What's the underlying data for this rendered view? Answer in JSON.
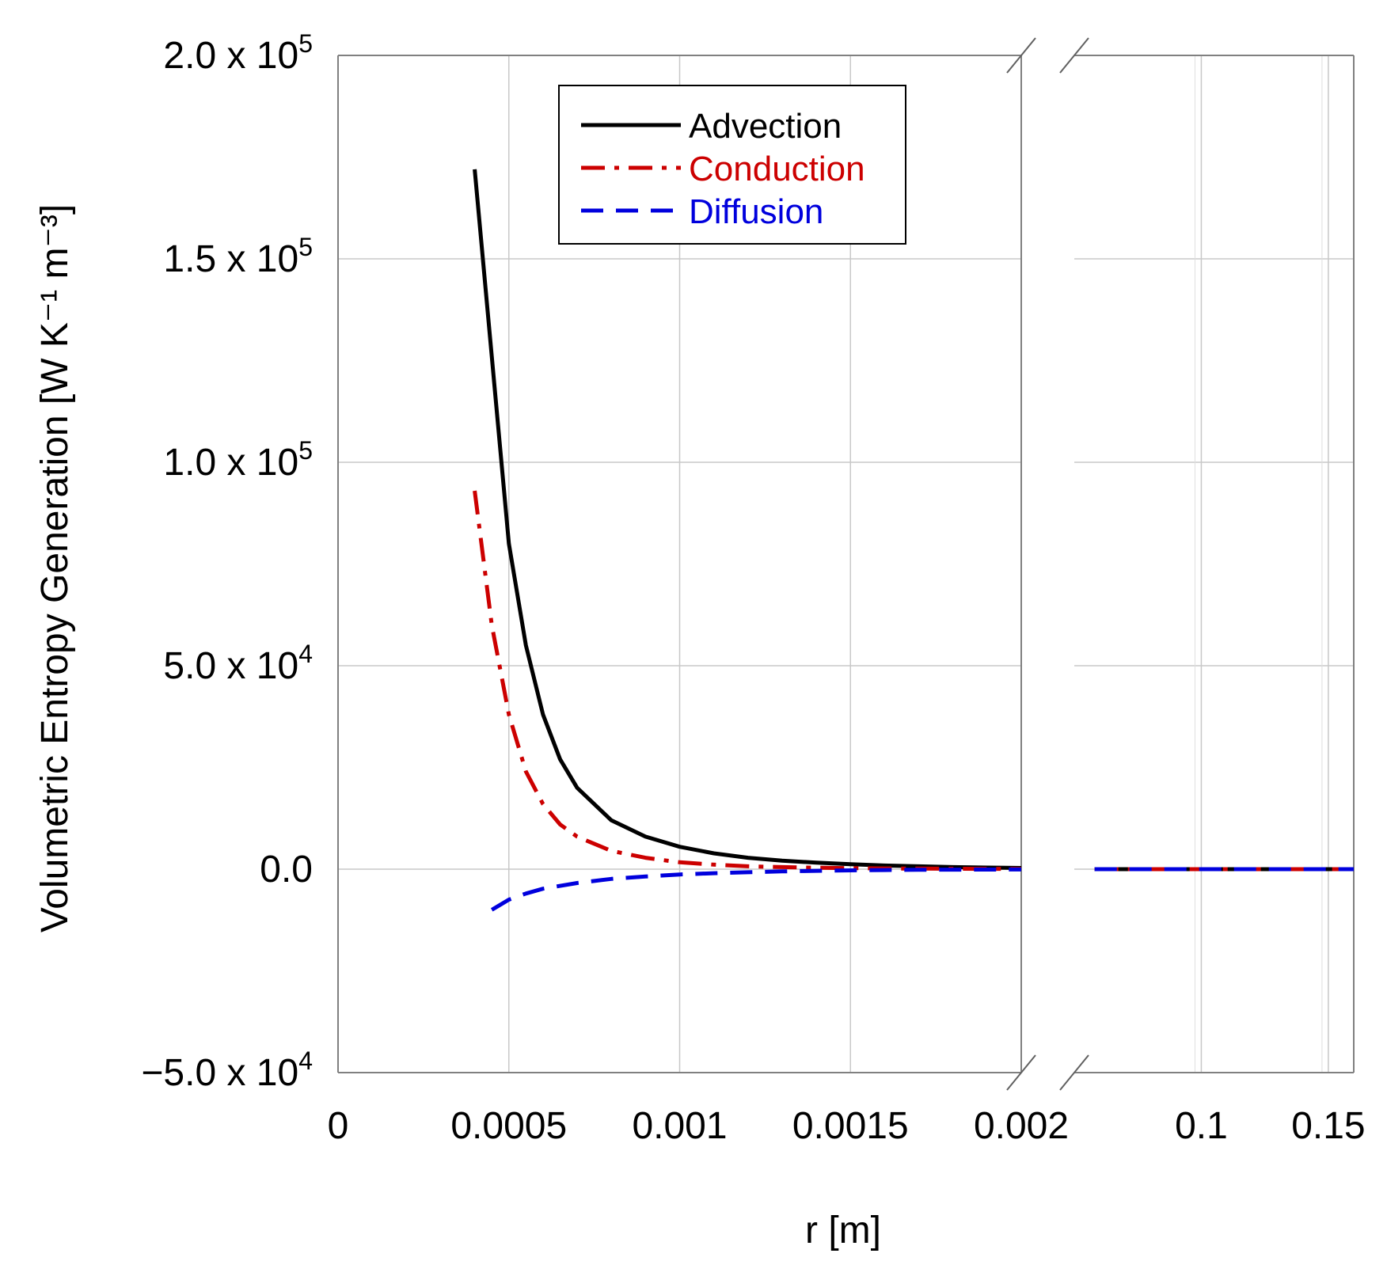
{
  "chart_data": {
    "type": "line",
    "xlabel": "r [m]",
    "ylabel": "Volumetric Entropy Generation [W K⁻¹ m⁻³]",
    "ylim": [
      -50000,
      200000
    ],
    "yticks": [
      {
        "value": 200000,
        "mantissa": "2.0 x 10",
        "exp": "5"
      },
      {
        "value": 150000,
        "mantissa": "1.5 x 10",
        "exp": "5"
      },
      {
        "value": 100000,
        "mantissa": "1.0 x 10",
        "exp": "5"
      },
      {
        "value": 50000,
        "mantissa": "5.0 x 10",
        "exp": "4"
      },
      {
        "value": 0,
        "mantissa": "0.0",
        "exp": ""
      },
      {
        "value": -50000,
        "mantissa": "−5.0 x 10",
        "exp": "4"
      }
    ],
    "x_broken_axis": {
      "left_segment": {
        "xlim": [
          0,
          0.002
        ],
        "ticks": [
          "0",
          "0.0005",
          "0.001",
          "0.0015",
          "0.002"
        ]
      },
      "right_segment": {
        "xlim": [
          0.05,
          0.16
        ],
        "ticks": [
          "0.1",
          "0.15"
        ]
      }
    },
    "grid": true,
    "legend_position": "top-center",
    "series": [
      {
        "name": "Advection",
        "color": "#000000",
        "style": "solid",
        "x": [
          0.0004,
          0.00045,
          0.0005,
          0.00055,
          0.0006,
          0.00065,
          0.0007,
          0.0008,
          0.0009,
          0.001,
          0.0011,
          0.0012,
          0.0013,
          0.0014,
          0.0015,
          0.0016,
          0.0017,
          0.0018,
          0.0019,
          0.002
        ],
        "y": [
          172000,
          126000,
          80000,
          55000,
          38000,
          27000,
          20000,
          12000,
          8000,
          5500,
          3900,
          2800,
          2100,
          1600,
          1200,
          900,
          700,
          500,
          380,
          300
        ]
      },
      {
        "name": "Conduction",
        "color": "#cc0000",
        "style": "dashdot",
        "x": [
          0.0004,
          0.00045,
          0.0005,
          0.00055,
          0.0006,
          0.00065,
          0.0007,
          0.0008,
          0.0009,
          0.001,
          0.0011,
          0.0012,
          0.0013,
          0.0014,
          0.0015,
          0.0016,
          0.0017,
          0.0018,
          0.0019,
          0.002
        ],
        "y": [
          93000,
          60000,
          38000,
          24000,
          16000,
          11000,
          8000,
          4500,
          2800,
          1700,
          1100,
          700,
          500,
          350,
          250,
          180,
          130,
          100,
          80,
          60
        ]
      },
      {
        "name": "Diffusion",
        "color": "#0000dd",
        "style": "dashed",
        "x": [
          0.00045,
          0.0005,
          0.00055,
          0.0006,
          0.0007,
          0.0008,
          0.0009,
          0.001,
          0.0011,
          0.0012,
          0.0013,
          0.0014,
          0.0015,
          0.0016,
          0.0017,
          0.0018,
          0.0019,
          0.002
        ],
        "y": [
          -10000,
          -7500,
          -6000,
          -4800,
          -3400,
          -2400,
          -1800,
          -1300,
          -1000,
          -750,
          -550,
          -400,
          -300,
          -220,
          -160,
          -120,
          -90,
          -70
        ]
      }
    ],
    "right_segment_series": [
      {
        "name": "Advection",
        "color": "#000000",
        "style": "solid",
        "x": [
          0.058,
          0.16
        ],
        "y": [
          0,
          0
        ]
      },
      {
        "name": "Conduction",
        "color": "#cc0000",
        "style": "dashdot",
        "x": [
          0.058,
          0.16
        ],
        "y": [
          0,
          0
        ]
      },
      {
        "name": "Diffusion",
        "color": "#0000dd",
        "style": "dashed",
        "x": [
          0.058,
          0.16
        ],
        "y": [
          0,
          0
        ]
      }
    ]
  }
}
